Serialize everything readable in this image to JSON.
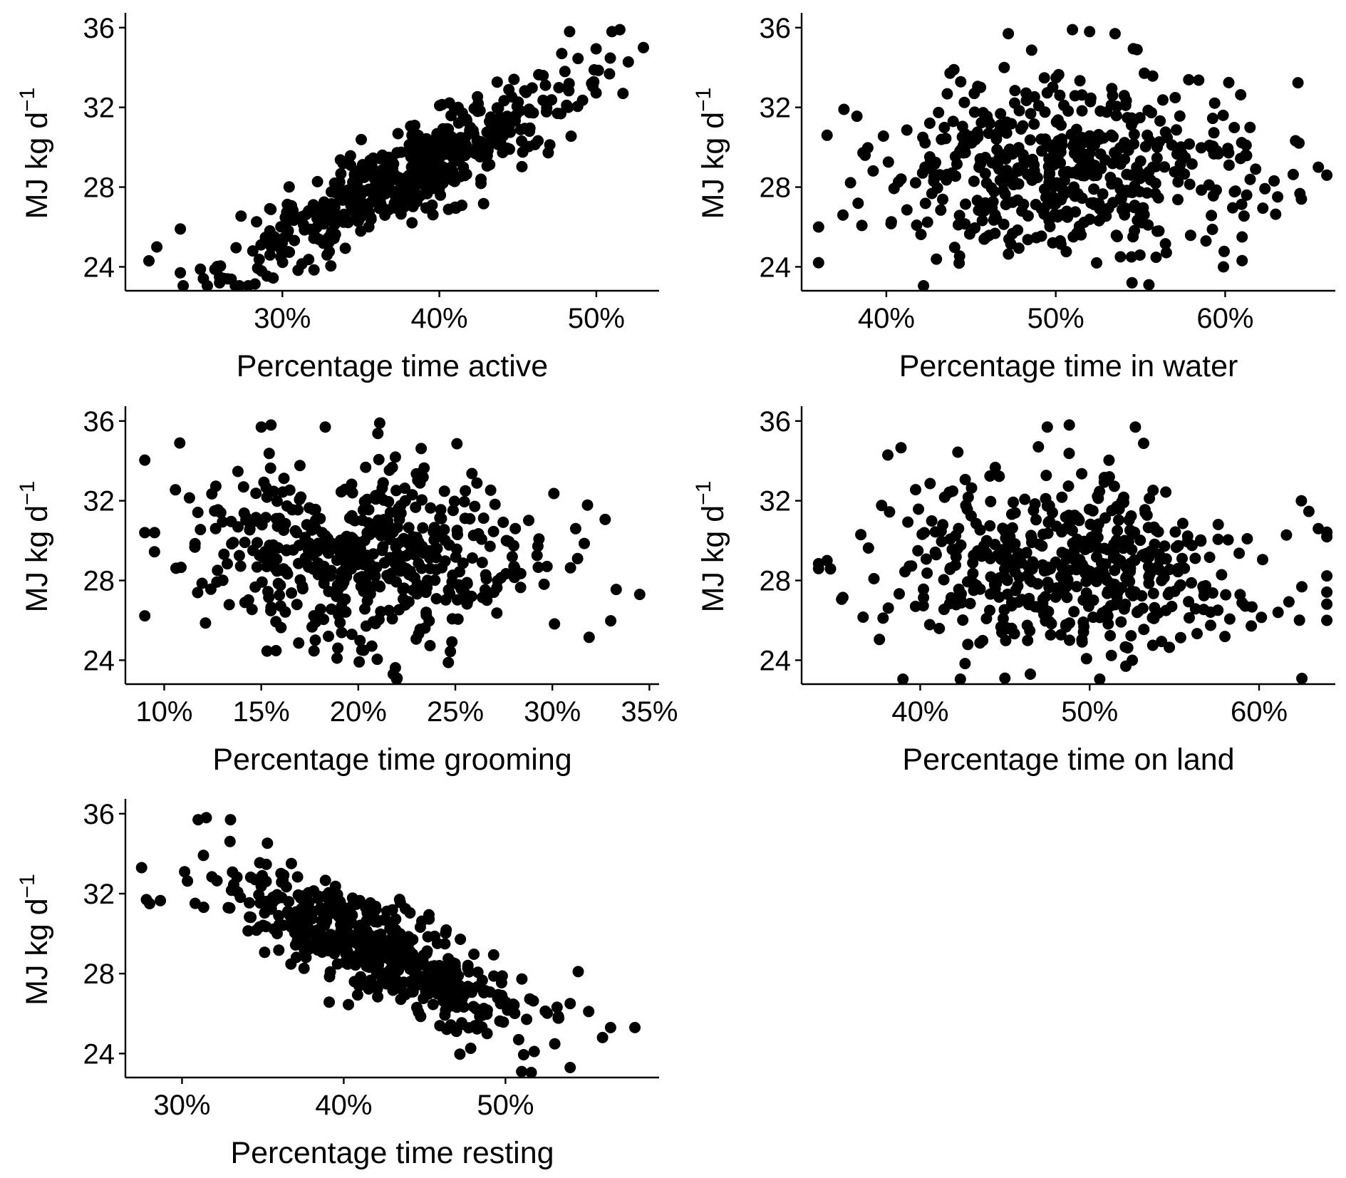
{
  "chart_data": [
    {
      "type": "scatter",
      "xlabel": "Percentage time active",
      "ylabel": {
        "main": "MJ kg  d",
        "sup": "−1"
      },
      "xlim": [
        0.2,
        0.54
      ],
      "ylim": [
        22.8,
        36.6
      ],
      "xticks": [
        0.3,
        0.4,
        0.5
      ],
      "xtick_labels": [
        "30%",
        "40%",
        "50%"
      ],
      "yticks": [
        24,
        28,
        32,
        36
      ],
      "ytick_labels": [
        "24",
        "28",
        "32",
        "36"
      ],
      "point_count": 520,
      "trend": {
        "intercept": 14.2,
        "slope": 38.0,
        "noise_sd": 1.05,
        "x_center": 0.38,
        "x_sd": 0.055,
        "x_min": 0.215,
        "x_max": 0.53
      },
      "points": [
        [
          0.215,
          24.3
        ],
        [
          0.22,
          25.0
        ],
        [
          0.235,
          23.7
        ],
        [
          0.235,
          25.9
        ],
        [
          0.26,
          23.2
        ],
        [
          0.265,
          23.4
        ],
        [
          0.483,
          35.8
        ],
        [
          0.51,
          35.8
        ],
        [
          0.515,
          35.9
        ],
        [
          0.53,
          35.0
        ],
        [
          0.517,
          32.7
        ],
        [
          0.478,
          34.7
        ],
        [
          0.497,
          33.2
        ],
        [
          0.48,
          33.8
        ]
      ],
      "grid": false
    },
    {
      "type": "scatter",
      "xlabel": "Percentage time in water",
      "ylabel": {
        "main": "MJ kg  d",
        "sup": "−1"
      },
      "xlim": [
        0.35,
        0.665
      ],
      "ylim": [
        22.8,
        36.6
      ],
      "xticks": [
        0.4,
        0.5,
        0.6
      ],
      "xtick_labels": [
        "40%",
        "50%",
        "60%"
      ],
      "yticks": [
        24,
        28,
        32,
        36
      ],
      "ytick_labels": [
        "24",
        "28",
        "32",
        "36"
      ],
      "point_count": 520,
      "trend": {
        "intercept": 28.8,
        "slope": 0.0,
        "noise_sd": 2.3,
        "x_center": 0.51,
        "x_sd": 0.055,
        "x_min": 0.36,
        "x_max": 0.66
      },
      "points": [
        [
          0.36,
          26.0
        ],
        [
          0.365,
          30.6
        ],
        [
          0.375,
          31.9
        ],
        [
          0.472,
          35.7
        ],
        [
          0.52,
          35.8
        ],
        [
          0.535,
          35.7
        ],
        [
          0.548,
          34.9
        ],
        [
          0.66,
          28.6
        ],
        [
          0.655,
          29.0
        ],
        [
          0.645,
          27.4
        ],
        [
          0.61,
          25.5
        ],
        [
          0.555,
          23.1
        ],
        [
          0.545,
          23.2
        ]
      ],
      "grid": false
    },
    {
      "type": "scatter",
      "xlabel": "Percentage time grooming",
      "ylabel": {
        "main": "MJ kg  d",
        "sup": "−1"
      },
      "xlim": [
        0.08,
        0.355
      ],
      "ylim": [
        22.8,
        36.6
      ],
      "xticks": [
        0.1,
        0.15,
        0.2,
        0.25,
        0.3,
        0.35
      ],
      "xtick_labels": [
        "10%",
        "15%",
        "20%",
        "25%",
        "30%",
        "35%"
      ],
      "yticks": [
        24,
        28,
        32,
        36
      ],
      "ytick_labels": [
        "24",
        "28",
        "32",
        "36"
      ],
      "point_count": 520,
      "trend": {
        "intercept": 30.6,
        "slope": -7.0,
        "noise_sd": 2.3,
        "x_center": 0.2,
        "x_sd": 0.045,
        "x_min": 0.09,
        "x_max": 0.345
      },
      "points": [
        [
          0.09,
          30.4
        ],
        [
          0.095,
          30.4
        ],
        [
          0.108,
          34.9
        ],
        [
          0.345,
          27.3
        ],
        [
          0.15,
          35.7
        ],
        [
          0.155,
          35.8
        ],
        [
          0.183,
          35.7
        ],
        [
          0.22,
          23.1
        ],
        [
          0.218,
          23.3
        ],
        [
          0.312,
          30.6
        ],
        [
          0.313,
          29.1
        ]
      ],
      "grid": false
    },
    {
      "type": "scatter",
      "xlabel": "Percentage time on land",
      "ylabel": {
        "main": "MJ kg  d",
        "sup": "−1"
      },
      "xlim": [
        0.33,
        0.645
      ],
      "ylim": [
        22.8,
        36.6
      ],
      "xticks": [
        0.4,
        0.5,
        0.6
      ],
      "xtick_labels": [
        "40%",
        "50%",
        "60%"
      ],
      "yticks": [
        24,
        28,
        32,
        36
      ],
      "ytick_labels": [
        "24",
        "28",
        "32",
        "36"
      ],
      "point_count": 520,
      "trend": {
        "intercept": 29.6,
        "slope": -2.0,
        "noise_sd": 2.2,
        "x_center": 0.49,
        "x_sd": 0.055,
        "x_min": 0.34,
        "x_max": 0.64
      },
      "points": [
        [
          0.34,
          28.6
        ],
        [
          0.345,
          29.0
        ],
        [
          0.475,
          35.7
        ],
        [
          0.488,
          35.8
        ],
        [
          0.527,
          35.7
        ],
        [
          0.64,
          26.0
        ],
        [
          0.635,
          30.6
        ],
        [
          0.625,
          32.0
        ],
        [
          0.45,
          23.1
        ],
        [
          0.465,
          23.3
        ]
      ],
      "grid": false
    },
    {
      "type": "scatter",
      "xlabel": "Percentage time resting",
      "ylabel": {
        "main": "MJ kg  d",
        "sup": "−1"
      },
      "xlim": [
        0.265,
        0.595
      ],
      "ylim": [
        22.8,
        36.6
      ],
      "xticks": [
        0.3,
        0.4,
        0.5
      ],
      "xtick_labels": [
        "30%",
        "40%",
        "50%"
      ],
      "yticks": [
        24,
        28,
        32,
        36
      ],
      "ytick_labels": [
        "24",
        "28",
        "32",
        "36"
      ],
      "point_count": 520,
      "trend": {
        "intercept": 43.0,
        "slope": -33.0,
        "noise_sd": 1.25,
        "x_center": 0.42,
        "x_sd": 0.05,
        "x_min": 0.275,
        "x_max": 0.58
      },
      "points": [
        [
          0.275,
          33.3
        ],
        [
          0.278,
          31.7
        ],
        [
          0.28,
          31.5
        ],
        [
          0.31,
          35.7
        ],
        [
          0.315,
          35.8
        ],
        [
          0.33,
          35.7
        ],
        [
          0.58,
          25.3
        ],
        [
          0.565,
          25.3
        ],
        [
          0.56,
          24.8
        ],
        [
          0.54,
          23.3
        ],
        [
          0.51,
          23.1
        ],
        [
          0.54,
          26.5
        ],
        [
          0.545,
          28.1
        ]
      ],
      "grid": false
    }
  ]
}
